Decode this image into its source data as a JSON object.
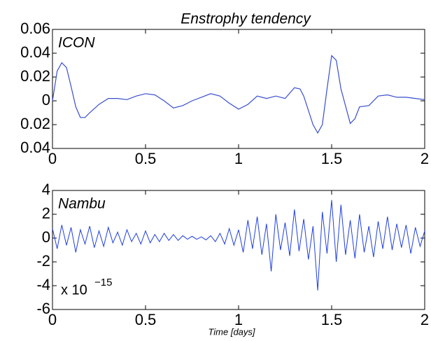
{
  "chart_data": [
    {
      "type": "line",
      "title": "Enstrophy tendency",
      "annotation": "ICON",
      "x": [
        0,
        0.025,
        0.05,
        0.075,
        0.1,
        0.125,
        0.15,
        0.175,
        0.2,
        0.25,
        0.3,
        0.35,
        0.4,
        0.45,
        0.5,
        0.55,
        0.6,
        0.65,
        0.7,
        0.75,
        0.8,
        0.85,
        0.9,
        0.95,
        1.0,
        1.05,
        1.1,
        1.15,
        1.2,
        1.25,
        1.3,
        1.33,
        1.35,
        1.4,
        1.425,
        1.45,
        1.475,
        1.5,
        1.525,
        1.55,
        1.6,
        1.625,
        1.65,
        1.7,
        1.75,
        1.8,
        1.85,
        1.9,
        1.95,
        2.0
      ],
      "values": [
        0.0,
        0.025,
        0.032,
        0.028,
        0.012,
        -0.005,
        -0.014,
        -0.014,
        -0.01,
        -0.003,
        0.002,
        0.002,
        0.001,
        0.004,
        0.006,
        0.005,
        0.0,
        -0.006,
        -0.004,
        0.0,
        0.003,
        0.006,
        0.004,
        -0.002,
        -0.007,
        -0.003,
        0.004,
        0.002,
        0.004,
        0.002,
        0.011,
        0.01,
        0.004,
        -0.02,
        -0.027,
        -0.02,
        0.01,
        0.038,
        0.034,
        0.01,
        -0.019,
        -0.015,
        -0.005,
        -0.004,
        0.004,
        0.005,
        0.003,
        0.003,
        0.002,
        0.001
      ],
      "color": "#3a4fcc",
      "xlim": [
        0,
        2
      ],
      "xticks": [
        0,
        0.5,
        1,
        1.5,
        2
      ],
      "ylim": [
        -0.04,
        0.06
      ],
      "yticks": [
        {
          "value": -0.04,
          "label": "0.04"
        },
        {
          "value": -0.02,
          "label": "0.02"
        },
        0,
        0.02,
        0.04,
        0.06
      ]
    },
    {
      "type": "line",
      "annotation": "Nambu",
      "scale_label": {
        "base": "x 10",
        "exponent": "−15"
      },
      "xlabel": "Time [days]",
      "x": [
        0,
        0.025,
        0.05,
        0.075,
        0.1,
        0.125,
        0.15,
        0.175,
        0.2,
        0.225,
        0.25,
        0.275,
        0.3,
        0.325,
        0.35,
        0.375,
        0.4,
        0.425,
        0.45,
        0.475,
        0.5,
        0.525,
        0.55,
        0.575,
        0.6,
        0.625,
        0.65,
        0.675,
        0.7,
        0.725,
        0.75,
        0.775,
        0.8,
        0.825,
        0.85,
        0.875,
        0.9,
        0.925,
        0.95,
        0.975,
        1.0,
        1.025,
        1.05,
        1.075,
        1.1,
        1.125,
        1.15,
        1.175,
        1.2,
        1.225,
        1.25,
        1.275,
        1.3,
        1.325,
        1.35,
        1.375,
        1.4,
        1.425,
        1.45,
        1.475,
        1.5,
        1.525,
        1.55,
        1.575,
        1.6,
        1.625,
        1.65,
        1.675,
        1.7,
        1.725,
        1.75,
        1.775,
        1.8,
        1.825,
        1.85,
        1.875,
        1.9,
        1.925,
        1.95,
        1.975,
        2.0
      ],
      "values": [
        0.8,
        -0.9,
        1.1,
        -0.6,
        0.9,
        -1.2,
        0.7,
        -0.5,
        1.0,
        -0.8,
        0.6,
        -0.7,
        0.9,
        -0.4,
        0.5,
        -0.6,
        0.7,
        -0.3,
        0.4,
        -0.5,
        0.6,
        -0.4,
        0.3,
        -0.3,
        0.4,
        -0.2,
        0.3,
        -0.2,
        0.2,
        -0.1,
        0.15,
        -0.1,
        0.1,
        -0.15,
        0.2,
        -0.3,
        0.4,
        -0.5,
        0.8,
        -0.6,
        0.7,
        -1.2,
        1.5,
        -0.9,
        1.8,
        -1.4,
        1.2,
        -2.8,
        2.0,
        -1.0,
        1.3,
        -1.5,
        2.4,
        -1.1,
        1.6,
        -1.8,
        1.0,
        -4.4,
        2.2,
        -1.3,
        3.2,
        -2.0,
        2.8,
        -1.4,
        1.5,
        -1.7,
        2.0,
        -1.2,
        1.0,
        -1.6,
        1.4,
        -0.9,
        1.8,
        -1.0,
        1.2,
        -0.8,
        1.1,
        -1.3,
        0.9,
        -0.7,
        0.6
      ],
      "color": "#1f3fe0",
      "xlim": [
        0,
        2
      ],
      "xticks": [
        0,
        0.5,
        1,
        1.5,
        2
      ],
      "ylim": [
        -6,
        4
      ],
      "yticks": [
        -6,
        -4,
        -2,
        0,
        2,
        4
      ]
    }
  ]
}
